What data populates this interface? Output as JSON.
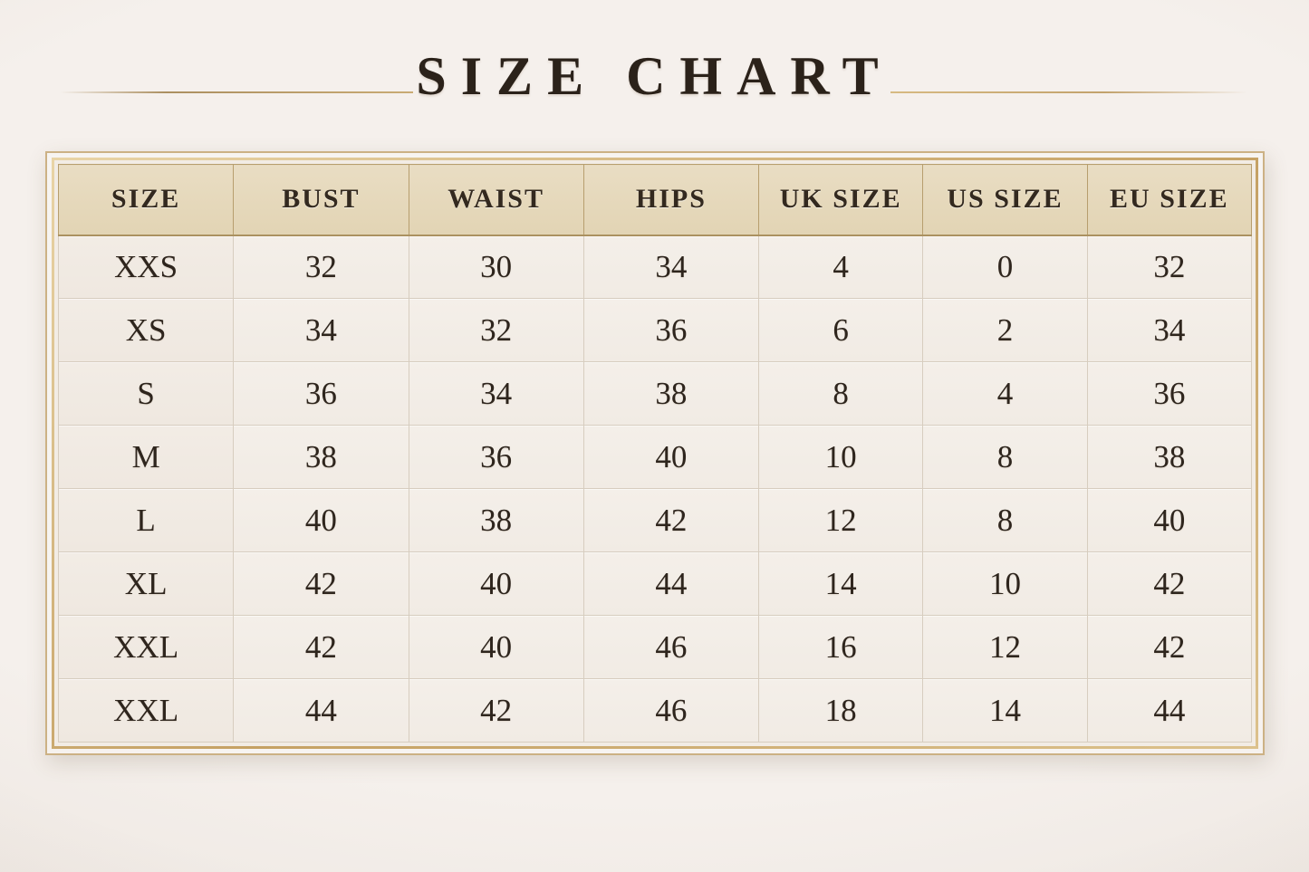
{
  "page": {
    "title": "SIZE CHART"
  },
  "chart_data": {
    "type": "table",
    "title": "SIZE CHART",
    "columns": [
      "SIZE",
      "BUST",
      "WAIST",
      "HIPS",
      "UK SIZE",
      "US SIZE",
      "EU SIZE"
    ],
    "rows": [
      [
        "XXS",
        "32",
        "30",
        "34",
        "4",
        "0",
        "32"
      ],
      [
        "XS",
        "34",
        "32",
        "36",
        "6",
        "2",
        "34"
      ],
      [
        "S",
        "36",
        "34",
        "38",
        "8",
        "4",
        "36"
      ],
      [
        "M",
        "38",
        "36",
        "40",
        "10",
        "8",
        "38"
      ],
      [
        "L",
        "40",
        "38",
        "42",
        "12",
        "8",
        "40"
      ],
      [
        "XL",
        "42",
        "40",
        "44",
        "14",
        "10",
        "42"
      ],
      [
        "XXL",
        "42",
        "40",
        "46",
        "16",
        "12",
        "42"
      ],
      [
        "XXL",
        "44",
        "42",
        "46",
        "18",
        "14",
        "44"
      ]
    ]
  },
  "colors": {
    "page_bg": "#f1ebe7",
    "text": "#2d241c",
    "accent_gold": "#c7a869",
    "header_bg": "#e4d7ba",
    "cell_bg": "#f3eee8",
    "grid_line": "#d7cdbf",
    "header_line": "#b79e6e"
  }
}
